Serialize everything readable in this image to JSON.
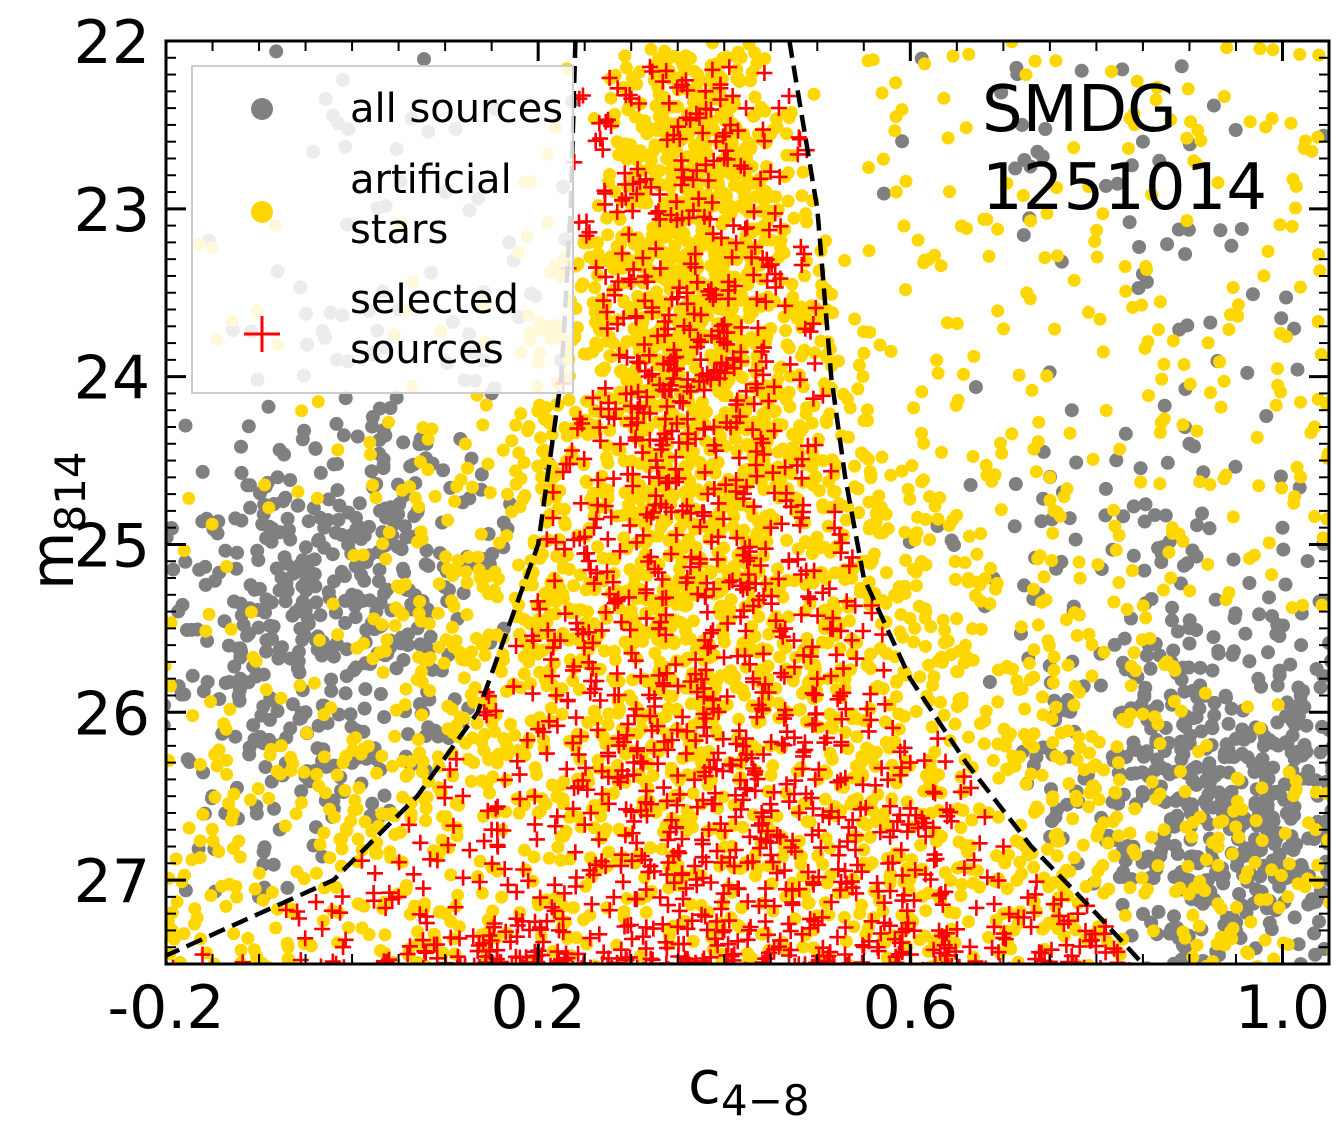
{
  "chart_data": {
    "type": "scatter",
    "title": "",
    "annotation": [
      "SMDG",
      "1251014"
    ],
    "xlabel": {
      "main": "c",
      "sub": "4−8"
    },
    "ylabel": {
      "main": "m",
      "sub": "814"
    },
    "xlim": [
      -0.2,
      1.05
    ],
    "ylim": [
      27.5,
      22.0
    ],
    "y_inverted": true,
    "xticks": [
      {
        "value": -0.2,
        "label": "-0.2"
      },
      {
        "value": 0.2,
        "label": "0.2"
      },
      {
        "value": 0.6,
        "label": "0.6"
      },
      {
        "value": 1.0,
        "label": "1.0"
      }
    ],
    "yticks": [
      {
        "value": 22,
        "label": "22"
      },
      {
        "value": 23,
        "label": "23"
      },
      {
        "value": 24,
        "label": "24"
      },
      {
        "value": 25,
        "label": "25"
      },
      {
        "value": 26,
        "label": "26"
      },
      {
        "value": 27,
        "label": "27"
      }
    ],
    "legend": {
      "placement": "top-left",
      "entries": [
        {
          "label": [
            "all sources"
          ],
          "marker": "circle",
          "color": "#808080"
        },
        {
          "label": [
            "artificial",
            "stars"
          ],
          "marker": "circle",
          "color": "#FFD700"
        },
        {
          "label": [
            "selected",
            "sources"
          ],
          "marker": "plus",
          "color": "#FF0000"
        }
      ]
    },
    "series": [
      {
        "name": "all sources",
        "marker": "circle",
        "color": "#808080",
        "distribution": "background field sources spread across the full color range, concentrated at faint magnitudes on both sides of the selection envelope",
        "sample_points": [
          {
            "x": -0.08,
            "y": 24.6
          },
          {
            "x": -0.03,
            "y": 24.9
          },
          {
            "x": 0.0,
            "y": 25.3
          },
          {
            "x": 0.03,
            "y": 24.8
          },
          {
            "x": -0.12,
            "y": 25.8
          },
          {
            "x": -0.05,
            "y": 26.0
          },
          {
            "x": 0.06,
            "y": 25.6
          },
          {
            "x": -0.15,
            "y": 26.5
          },
          {
            "x": 0.08,
            "y": 24.4
          },
          {
            "x": -0.1,
            "y": 27.1
          },
          {
            "x": 0.85,
            "y": 26.5
          },
          {
            "x": 0.92,
            "y": 27.0
          },
          {
            "x": 0.98,
            "y": 26.2
          },
          {
            "x": 1.02,
            "y": 25.6
          },
          {
            "x": 0.88,
            "y": 25.9
          },
          {
            "x": 0.95,
            "y": 27.3
          },
          {
            "x": 0.78,
            "y": 26.9
          },
          {
            "x": 1.0,
            "y": 24.9
          },
          {
            "x": 0.9,
            "y": 24.4
          },
          {
            "x": 0.72,
            "y": 22.5
          },
          {
            "x": 0.85,
            "y": 22.6
          },
          {
            "x": 0.1,
            "y": 22.9
          },
          {
            "x": 0.05,
            "y": 23.6
          },
          {
            "x": 0.15,
            "y": 24.1
          }
        ]
      },
      {
        "name": "artificial stars",
        "marker": "circle",
        "color": "#FFD700",
        "distribution": "dense vertical column centered near c = 0.36 at bright magnitudes, widening toward faint magnitudes",
        "sample_points": [
          {
            "x": 0.33,
            "y": 22.2
          },
          {
            "x": 0.38,
            "y": 22.5
          },
          {
            "x": 0.35,
            "y": 23.0
          },
          {
            "x": 0.4,
            "y": 23.4
          },
          {
            "x": 0.32,
            "y": 23.8
          },
          {
            "x": 0.37,
            "y": 24.3
          },
          {
            "x": 0.3,
            "y": 24.8
          },
          {
            "x": 0.42,
            "y": 25.2
          },
          {
            "x": 0.28,
            "y": 25.8
          },
          {
            "x": 0.45,
            "y": 26.2
          },
          {
            "x": 0.2,
            "y": 26.6
          },
          {
            "x": 0.55,
            "y": 26.9
          },
          {
            "x": 0.1,
            "y": 27.2
          },
          {
            "x": 0.7,
            "y": 27.2
          },
          {
            "x": 0.62,
            "y": 23.3
          },
          {
            "x": 0.75,
            "y": 24.6
          },
          {
            "x": 0.88,
            "y": 25.2
          },
          {
            "x": 0.98,
            "y": 23.4
          }
        ]
      },
      {
        "name": "selected sources",
        "marker": "plus",
        "color": "#FF0000",
        "distribution": "sources inside the dashed selection envelope, sparse at bright magnitudes and dense at faint magnitudes",
        "sample_points": [
          {
            "x": 0.38,
            "y": 22.3
          },
          {
            "x": 0.4,
            "y": 22.7
          },
          {
            "x": 0.41,
            "y": 23.1
          },
          {
            "x": 0.36,
            "y": 23.5
          },
          {
            "x": 0.3,
            "y": 24.1
          },
          {
            "x": 0.26,
            "y": 24.9
          },
          {
            "x": 0.45,
            "y": 24.9
          },
          {
            "x": 0.33,
            "y": 25.5
          },
          {
            "x": 0.5,
            "y": 25.8
          },
          {
            "x": 0.2,
            "y": 26.1
          },
          {
            "x": 0.6,
            "y": 26.3
          },
          {
            "x": 0.15,
            "y": 26.7
          },
          {
            "x": 0.7,
            "y": 26.8
          },
          {
            "x": 0.05,
            "y": 27.1
          },
          {
            "x": 0.78,
            "y": 27.2
          },
          {
            "x": 0.4,
            "y": 27.3
          }
        ]
      },
      {
        "name": "selection boundary (left)",
        "marker": "dashed-line",
        "color": "#000000",
        "points": [
          {
            "x": 0.24,
            "y": 22.0
          },
          {
            "x": 0.235,
            "y": 23.0
          },
          {
            "x": 0.225,
            "y": 24.0
          },
          {
            "x": 0.2,
            "y": 25.0
          },
          {
            "x": 0.135,
            "y": 26.0
          },
          {
            "x": 0.07,
            "y": 26.5
          },
          {
            "x": -0.02,
            "y": 27.0
          },
          {
            "x": -0.2,
            "y": 27.45
          }
        ]
      },
      {
        "name": "selection boundary (right)",
        "marker": "dashed-line",
        "color": "#000000",
        "points": [
          {
            "x": 0.47,
            "y": 22.0
          },
          {
            "x": 0.5,
            "y": 23.0
          },
          {
            "x": 0.515,
            "y": 24.0
          },
          {
            "x": 0.53,
            "y": 24.6
          },
          {
            "x": 0.55,
            "y": 25.2
          },
          {
            "x": 0.6,
            "y": 25.8
          },
          {
            "x": 0.66,
            "y": 26.3
          },
          {
            "x": 0.73,
            "y": 26.8
          },
          {
            "x": 0.8,
            "y": 27.2
          },
          {
            "x": 0.85,
            "y": 27.5
          }
        ]
      }
    ]
  }
}
